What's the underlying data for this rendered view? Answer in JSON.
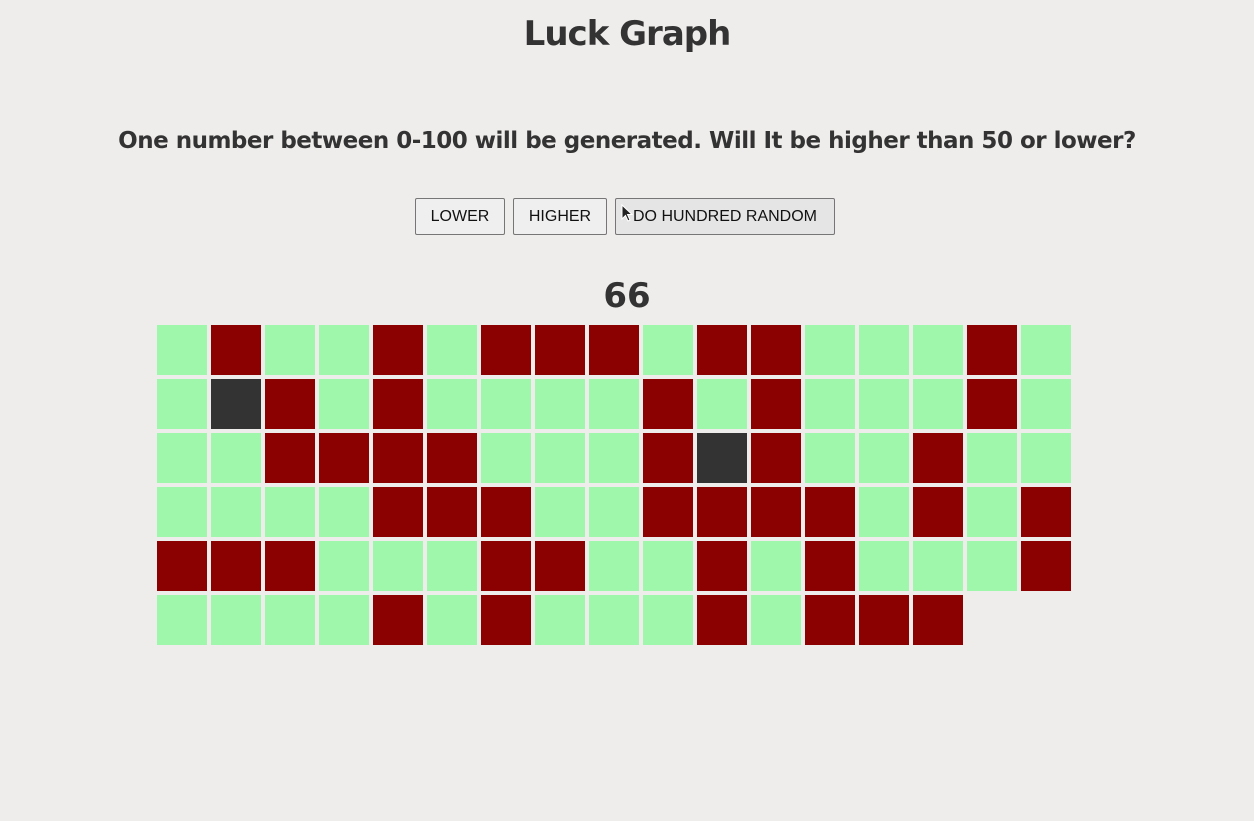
{
  "title": "Luck Graph",
  "question": "One number between 0-100 will be generated. Will It be higher than 50 or lower?",
  "buttons": {
    "lower": "LOWER",
    "higher": "HIGHER",
    "random": "DO HUNDRED RANDOM"
  },
  "result": "66",
  "colors": {
    "win": "#9ef7ab",
    "loss": "#8b0000",
    "neutral": "#333333"
  },
  "results_grid": [
    "W",
    "L",
    "W",
    "W",
    "L",
    "W",
    "L",
    "L",
    "L",
    "W",
    "L",
    "L",
    "W",
    "W",
    "W",
    "L",
    "W",
    "W",
    "N",
    "L",
    "W",
    "L",
    "W",
    "W",
    "W",
    "W",
    "L",
    "W",
    "L",
    "W",
    "W",
    "W",
    "L",
    "W",
    "W",
    "W",
    "L",
    "L",
    "L",
    "L",
    "W",
    "W",
    "W",
    "L",
    "N",
    "L",
    "W",
    "W",
    "L",
    "W",
    "W",
    "W",
    "W",
    "W",
    "W",
    "L",
    "L",
    "L",
    "W",
    "W",
    "L",
    "L",
    "L",
    "L",
    "W",
    "L",
    "W",
    "L",
    "L",
    "L",
    "L",
    "W",
    "W",
    "W",
    "L",
    "L",
    "W",
    "W",
    "L",
    "W",
    "L",
    "W",
    "W",
    "W",
    "L",
    "W",
    "W",
    "W",
    "W",
    "L",
    "W",
    "L",
    "W",
    "W",
    "W",
    "L",
    "W",
    "L",
    "L",
    "L"
  ]
}
